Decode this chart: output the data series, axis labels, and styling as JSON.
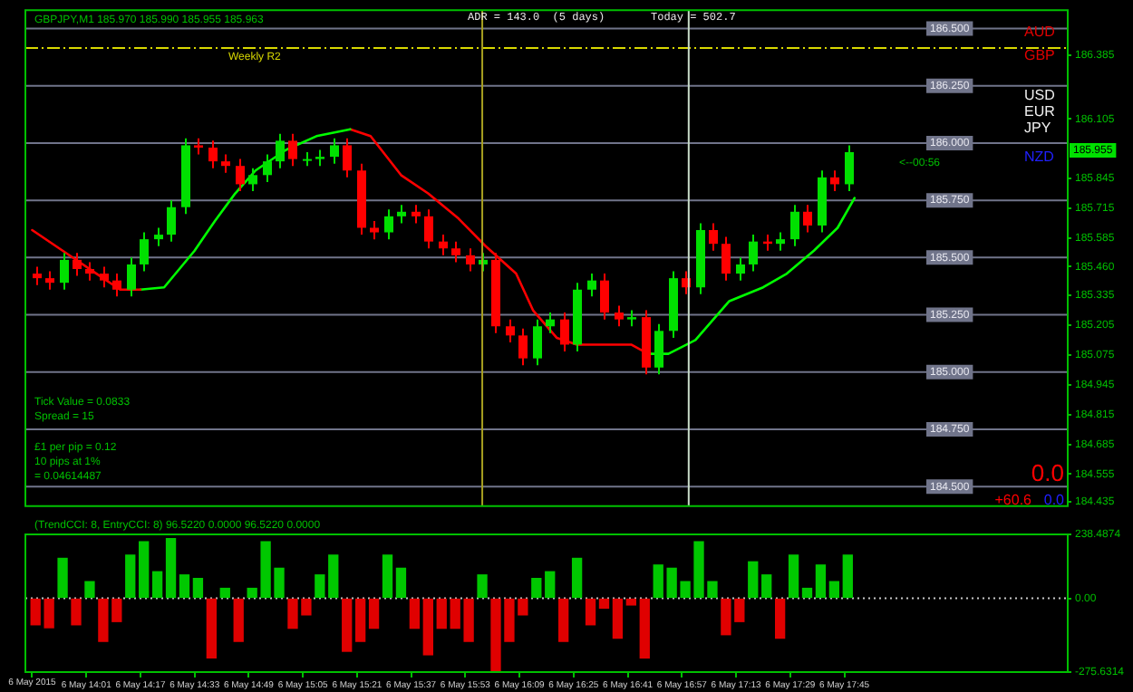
{
  "chart_data": [
    {
      "type": "candlestick",
      "title": "GBPJPY,M1 185.970 185.990 185.955 185.963",
      "x": [
        "2015-05-06T13:46",
        "2015-05-06T13:50",
        "2015-05-06T13:54",
        "2015-05-06T13:58",
        "2015-05-06T14:02",
        "2015-05-06T14:06",
        "2015-05-06T14:10",
        "2015-05-06T14:14",
        "2015-05-06T14:18",
        "2015-05-06T14:22",
        "2015-05-06T14:26",
        "2015-05-06T14:30",
        "2015-05-06T14:34",
        "2015-05-06T14:38",
        "2015-05-06T14:42",
        "2015-05-06T14:46",
        "2015-05-06T14:50",
        "2015-05-06T14:54",
        "2015-05-06T14:58",
        "2015-05-06T15:02",
        "2015-05-06T15:06",
        "2015-05-06T15:10",
        "2015-05-06T15:14",
        "2015-05-06T15:18",
        "2015-05-06T15:22",
        "2015-05-06T15:26",
        "2015-05-06T15:30",
        "2015-05-06T15:34",
        "2015-05-06T15:38",
        "2015-05-06T15:42",
        "2015-05-06T15:46",
        "2015-05-06T15:50",
        "2015-05-06T15:54",
        "2015-05-06T15:58",
        "2015-05-06T16:02",
        "2015-05-06T16:06",
        "2015-05-06T16:10",
        "2015-05-06T16:14",
        "2015-05-06T16:18",
        "2015-05-06T16:22",
        "2015-05-06T16:26",
        "2015-05-06T16:30",
        "2015-05-06T16:34",
        "2015-05-06T16:38",
        "2015-05-06T16:42",
        "2015-05-06T16:46",
        "2015-05-06T16:50",
        "2015-05-06T16:54",
        "2015-05-06T16:58",
        "2015-05-06T17:02",
        "2015-05-06T17:06",
        "2015-05-06T17:10",
        "2015-05-06T17:14",
        "2015-05-06T17:18",
        "2015-05-06T17:22",
        "2015-05-06T17:26",
        "2015-05-06T17:30",
        "2015-05-06T17:34",
        "2015-05-06T17:38",
        "2015-05-06T17:42",
        "2015-05-06T17:46"
      ],
      "ohlc": [
        [
          185.43,
          185.46,
          185.38,
          185.41
        ],
        [
          185.41,
          185.44,
          185.36,
          185.39
        ],
        [
          185.39,
          185.52,
          185.36,
          185.49
        ],
        [
          185.49,
          185.52,
          185.42,
          185.45
        ],
        [
          185.45,
          185.48,
          185.4,
          185.43
        ],
        [
          185.43,
          185.46,
          185.37,
          185.4
        ],
        [
          185.4,
          185.43,
          185.33,
          185.36
        ],
        [
          185.36,
          185.5,
          185.33,
          185.47
        ],
        [
          185.47,
          185.61,
          185.44,
          185.58
        ],
        [
          185.58,
          185.63,
          185.55,
          185.6
        ],
        [
          185.6,
          185.75,
          185.57,
          185.72
        ],
        [
          185.72,
          186.02,
          185.69,
          185.99
        ],
        [
          185.99,
          186.02,
          185.95,
          185.98
        ],
        [
          185.98,
          186.01,
          185.89,
          185.92
        ],
        [
          185.92,
          185.95,
          185.87,
          185.9
        ],
        [
          185.9,
          185.93,
          185.79,
          185.82
        ],
        [
          185.82,
          185.89,
          185.79,
          185.86
        ],
        [
          185.86,
          185.95,
          185.83,
          185.92
        ],
        [
          185.92,
          186.04,
          185.89,
          186.01
        ],
        [
          186.01,
          186.04,
          185.9,
          185.93
        ],
        [
          185.93,
          185.96,
          185.9,
          185.93
        ],
        [
          185.93,
          185.97,
          185.9,
          185.94
        ],
        [
          185.94,
          186.02,
          185.91,
          185.99
        ],
        [
          185.99,
          186.02,
          185.85,
          185.88
        ],
        [
          185.88,
          185.91,
          185.6,
          185.63
        ],
        [
          185.63,
          185.66,
          185.58,
          185.61
        ],
        [
          185.61,
          185.71,
          185.58,
          185.68
        ],
        [
          185.68,
          185.73,
          185.65,
          185.7
        ],
        [
          185.7,
          185.73,
          185.65,
          185.68
        ],
        [
          185.68,
          185.71,
          185.54,
          185.57
        ],
        [
          185.57,
          185.6,
          185.51,
          185.54
        ],
        [
          185.54,
          185.57,
          185.48,
          185.51
        ],
        [
          185.51,
          185.54,
          185.44,
          185.47
        ],
        [
          185.47,
          185.52,
          185.44,
          185.49
        ],
        [
          185.49,
          185.52,
          185.17,
          185.2
        ],
        [
          185.2,
          185.23,
          185.13,
          185.16
        ],
        [
          185.16,
          185.19,
          185.03,
          185.06
        ],
        [
          185.06,
          185.23,
          185.03,
          185.2
        ],
        [
          185.2,
          185.26,
          185.17,
          185.23
        ],
        [
          185.23,
          185.26,
          185.09,
          185.12
        ],
        [
          185.12,
          185.39,
          185.09,
          185.36
        ],
        [
          185.36,
          185.43,
          185.33,
          185.4
        ],
        [
          185.4,
          185.43,
          185.23,
          185.26
        ],
        [
          185.26,
          185.29,
          185.2,
          185.23
        ],
        [
          185.23,
          185.27,
          185.2,
          185.24
        ],
        [
          185.24,
          185.27,
          184.99,
          185.02
        ],
        [
          185.02,
          185.21,
          184.99,
          185.18
        ],
        [
          185.18,
          185.44,
          185.15,
          185.41
        ],
        [
          185.41,
          185.44,
          185.34,
          185.37
        ],
        [
          185.37,
          185.65,
          185.34,
          185.62
        ],
        [
          185.62,
          185.65,
          185.53,
          185.56
        ],
        [
          185.56,
          185.59,
          185.4,
          185.43
        ],
        [
          185.43,
          185.5,
          185.4,
          185.47
        ],
        [
          185.47,
          185.6,
          185.44,
          185.57
        ],
        [
          185.57,
          185.6,
          185.53,
          185.56
        ],
        [
          185.56,
          185.61,
          185.53,
          185.58
        ],
        [
          185.58,
          185.73,
          185.55,
          185.7
        ],
        [
          185.7,
          185.73,
          185.61,
          185.64
        ],
        [
          185.64,
          185.88,
          185.61,
          185.85
        ],
        [
          185.85,
          185.88,
          185.79,
          185.82
        ],
        [
          185.82,
          185.99,
          185.79,
          185.96
        ]
      ],
      "colors": [
        "#ff0000",
        "#ff0000",
        "#00e000",
        "#ff0000",
        "#ff0000",
        "#ff0000",
        "#ff0000",
        "#00e000",
        "#00e000",
        "#00e000",
        "#00e000",
        "#00e000",
        "#ff0000",
        "#ff0000",
        "#ff0000",
        "#ff0000",
        "#00e000",
        "#00e000",
        "#00e000",
        "#ff0000",
        "#00e000",
        "#00e000",
        "#00e000",
        "#ff0000",
        "#ff0000",
        "#ff0000",
        "#00e000",
        "#00e000",
        "#ff0000",
        "#ff0000",
        "#ff0000",
        "#ff0000",
        "#ff0000",
        "#00e000",
        "#ff0000",
        "#ff0000",
        "#ff0000",
        "#00e000",
        "#00e000",
        "#ff0000",
        "#00e000",
        "#00e000",
        "#ff0000",
        "#ff0000",
        "#00e000",
        "#ff0000",
        "#00e000",
        "#00e000",
        "#ff0000",
        "#00e000",
        "#ff0000",
        "#ff0000",
        "#00e000",
        "#00e000",
        "#ff0000",
        "#00e000",
        "#00e000",
        "#ff0000",
        "#00e000",
        "#ff0000",
        "#00e000"
      ],
      "series": [
        {
          "type": "line",
          "color": "#ff0000",
          "x": [
            "2015-05-06T13:45",
            "2015-05-06T13:54",
            "2015-05-06T14:04",
            "2015-05-06T14:11",
            "2015-05-06T14:17"
          ],
          "values": [
            185.62,
            185.53,
            185.43,
            185.36,
            185.36
          ]
        },
        {
          "type": "line",
          "color": "#00ff00",
          "x": [
            "2015-05-06T14:17",
            "2015-05-06T14:24",
            "2015-05-06T14:33",
            "2015-05-06T14:39",
            "2015-05-06T14:45",
            "2015-05-06T14:51",
            "2015-05-06T15:00",
            "2015-05-06T15:09",
            "2015-05-06T15:19"
          ],
          "values": [
            185.36,
            185.37,
            185.53,
            185.66,
            185.78,
            185.88,
            185.97,
            186.03,
            186.06
          ]
        },
        {
          "type": "line",
          "color": "#ff0000",
          "x": [
            "2015-05-06T15:19",
            "2015-05-06T15:25",
            "2015-05-06T15:34",
            "2015-05-06T15:42",
            "2015-05-06T15:51",
            "2015-05-06T15:59",
            "2015-05-06T16:08",
            "2015-05-06T16:13",
            "2015-05-06T16:20",
            "2015-05-06T16:26",
            "2015-05-06T16:33",
            "2015-05-06T16:42",
            "2015-05-06T16:47"
          ],
          "values": [
            186.06,
            186.03,
            185.86,
            185.78,
            185.67,
            185.55,
            185.43,
            185.27,
            185.15,
            185.12,
            185.12,
            185.12,
            185.08
          ]
        },
        {
          "type": "line",
          "color": "#00ff00",
          "x": [
            "2015-05-06T16:47",
            "2015-05-06T16:53",
            "2015-05-06T17:01",
            "2015-05-06T17:11",
            "2015-05-06T17:21",
            "2015-05-06T17:28",
            "2015-05-06T17:36",
            "2015-05-06T17:43",
            "2015-05-06T17:48"
          ],
          "values": [
            185.08,
            185.08,
            185.14,
            185.31,
            185.37,
            185.43,
            185.53,
            185.63,
            185.76
          ]
        }
      ],
      "xlim": [
        "2015-05-06T13:43",
        "2015-05-06T18:51"
      ],
      "ylim": [
        184.415,
        186.58
      ],
      "yticks": [
        184.435,
        184.555,
        184.685,
        184.815,
        184.945,
        185.075,
        185.205,
        185.335,
        {
          "value": 185.46,
          "label": "185.460"
        },
        185.585,
        185.715,
        185.845,
        186.105,
        186.385
      ],
      "tick_labels": "y",
      "ref_lines": [
        {
          "axis": "y",
          "value": 186.415,
          "label": "Weekly R2",
          "color": "#d8d800",
          "line_style": "dashed"
        },
        {
          "axis": "y",
          "value": 186.5,
          "label": "186.500",
          "color": "#70748a"
        },
        {
          "axis": "y",
          "value": 186.25,
          "label": "186.250",
          "color": "#70748a"
        },
        {
          "axis": "y",
          "value": 186,
          "label": "186.000",
          "color": "#70748a"
        },
        {
          "axis": "y",
          "value": 185.75,
          "label": "185.750",
          "color": "#70748a"
        },
        {
          "axis": "y",
          "value": 185.5,
          "label": "185.500",
          "color": "#70748a"
        },
        {
          "axis": "y",
          "value": 185.25,
          "label": "185.250",
          "color": "#70748a"
        },
        {
          "axis": "y",
          "value": 185,
          "label": "185.000",
          "color": "#70748a"
        },
        {
          "axis": "y",
          "value": 184.75,
          "label": "184.750",
          "color": "#70748a"
        },
        {
          "axis": "y",
          "value": 184.5,
          "label": "184.500",
          "color": "#70748a"
        },
        {
          "axis": "x",
          "value": "2015-05-06T15:58",
          "label": null,
          "color": "#a8a020"
        },
        {
          "axis": "x",
          "value": "2015-05-06T16:59",
          "label": null,
          "color": "#c8dcc8"
        }
      ],
      "annotations": [
        "ADR = 143.0  (5 days)",
        "Today = 502.7",
        "Tick Value = 0.0833",
        "Spread = 15",
        "£1 per pip = 0.12",
        "10 pips at 1%",
        "= 0.04614487",
        "AUD",
        "GBP",
        "USD",
        "EUR",
        "JPY",
        "NZD",
        "0.0",
        "+60.6",
        "0.0",
        "<--00:56",
        "185.955"
      ]
    },
    {
      "type": "bar",
      "title": "(TrendCCI: 8, EntryCCI: 8) 96.5220 0.0000 96.5220 0.0000",
      "x": [
        "2015-05-06T13:46",
        "2015-05-06T13:50",
        "2015-05-06T13:54",
        "2015-05-06T13:58",
        "2015-05-06T14:02",
        "2015-05-06T14:06",
        "2015-05-06T14:10",
        "2015-05-06T14:14",
        "2015-05-06T14:18",
        "2015-05-06T14:22",
        "2015-05-06T14:26",
        "2015-05-06T14:30",
        "2015-05-06T14:34",
        "2015-05-06T14:38",
        "2015-05-06T14:42",
        "2015-05-06T14:46",
        "2015-05-06T14:50",
        "2015-05-06T14:54",
        "2015-05-06T14:58",
        "2015-05-06T15:02",
        "2015-05-06T15:06",
        "2015-05-06T15:10",
        "2015-05-06T15:14",
        "2015-05-06T15:18",
        "2015-05-06T15:22",
        "2015-05-06T15:26",
        "2015-05-06T15:30",
        "2015-05-06T15:34",
        "2015-05-06T15:38",
        "2015-05-06T15:42",
        "2015-05-06T15:46",
        "2015-05-06T15:50",
        "2015-05-06T15:54",
        "2015-05-06T15:58",
        "2015-05-06T16:02",
        "2015-05-06T16:06",
        "2015-05-06T16:10",
        "2015-05-06T16:14",
        "2015-05-06T16:18",
        "2015-05-06T16:22",
        "2015-05-06T16:26",
        "2015-05-06T16:30",
        "2015-05-06T16:34",
        "2015-05-06T16:38",
        "2015-05-06T16:42",
        "2015-05-06T16:46",
        "2015-05-06T16:50",
        "2015-05-06T16:54",
        "2015-05-06T16:58",
        "2015-05-06T17:02",
        "2015-05-06T17:06",
        "2015-05-06T17:10",
        "2015-05-06T17:14",
        "2015-05-06T17:18",
        "2015-05-06T17:22",
        "2015-05-06T17:26",
        "2015-05-06T17:30",
        "2015-05-06T17:34",
        "2015-05-06T17:38",
        "2015-05-06T17:42",
        "2015-05-06T17:46"
      ],
      "values": [
        -99,
        -110,
        149,
        -99,
        62,
        -161,
        -87,
        161,
        211,
        99,
        223,
        87,
        74,
        -223,
        37,
        -161,
        37,
        211,
        112,
        -112,
        -62,
        87,
        161,
        -198,
        -161,
        -112,
        161,
        112,
        -112,
        -211,
        -112,
        -112,
        -161,
        87,
        -270,
        -161,
        -62,
        74,
        99,
        -161,
        149,
        -99,
        -37,
        -149,
        -25,
        -223,
        124,
        112,
        62,
        211,
        62,
        -136,
        -87,
        136,
        87,
        -149,
        161,
        37,
        124,
        62,
        161
      ],
      "colors": [
        "#e00000",
        "#e00000",
        "#00c800",
        "#e00000",
        "#00c800",
        "#e00000",
        "#e00000",
        "#00c800",
        "#00c800",
        "#00c800",
        "#00c800",
        "#00c800",
        "#00c800",
        "#e00000",
        "#00c800",
        "#e00000",
        "#00c800",
        "#00c800",
        "#00c800",
        "#e00000",
        "#e00000",
        "#00c800",
        "#00c800",
        "#e00000",
        "#e00000",
        "#e00000",
        "#00c800",
        "#00c800",
        "#e00000",
        "#e00000",
        "#e00000",
        "#e00000",
        "#e00000",
        "#00c800",
        "#e00000",
        "#e00000",
        "#e00000",
        "#00c800",
        "#00c800",
        "#e00000",
        "#00c800",
        "#e00000",
        "#e00000",
        "#e00000",
        "#e00000",
        "#e00000",
        "#00c800",
        "#00c800",
        "#00c800",
        "#00c800",
        "#00c800",
        "#e00000",
        "#e00000",
        "#00c800",
        "#00c800",
        "#e00000",
        "#00c800",
        "#00c800",
        "#00c800",
        "#00c800",
        "#00c800"
      ],
      "xlim": [
        "2015-05-06T13:43",
        "2015-05-06T18:51"
      ],
      "xticks": [
        {
          "value": "2015-05-06T13:45",
          "label": null
        },
        {
          "value": "2015-05-06T14:01",
          "label": "6 May 14:01"
        },
        {
          "value": "2015-05-06T14:17",
          "label": "6 May 14:17"
        },
        {
          "value": "2015-05-06T14:33",
          "label": "6 May 14:33"
        },
        {
          "value": "2015-05-06T14:49",
          "label": "6 May 14:49"
        },
        {
          "value": "2015-05-06T15:05",
          "label": "6 May 15:05"
        },
        {
          "value": "2015-05-06T15:21",
          "label": "6 May 15:21"
        },
        {
          "value": "2015-05-06T15:37",
          "label": "6 May 15:37"
        },
        {
          "value": "2015-05-06T15:53",
          "label": "6 May 15:53"
        },
        {
          "value": "2015-05-06T16:09",
          "label": "6 May 16:09"
        },
        {
          "value": "2015-05-06T16:25",
          "label": "6 May 16:25"
        },
        {
          "value": "2015-05-06T16:41",
          "label": "6 May 16:41"
        },
        {
          "value": "2015-05-06T16:57",
          "label": "6 May 16:57"
        },
        {
          "value": "2015-05-06T17:13",
          "label": "6 May 17:13"
        },
        {
          "value": "2015-05-06T17:29",
          "label": "6 May 17:29"
        },
        {
          "value": "2015-05-06T17:45",
          "label": "6 May 17:45"
        }
      ],
      "annotations": [
        "6 May 2015"
      ],
      "ylim": [
        -275.6314,
        238.4874
      ],
      "yticks": [
        -275.6314,
        {
          "value": 0,
          "label": "0.00"
        },
        238.4874
      ],
      "ref_lines": [
        {
          "axis": "y",
          "value": 0,
          "label": null,
          "color": "#c8c8c8",
          "line_style": "dotted"
        }
      ]
    }
  ]
}
